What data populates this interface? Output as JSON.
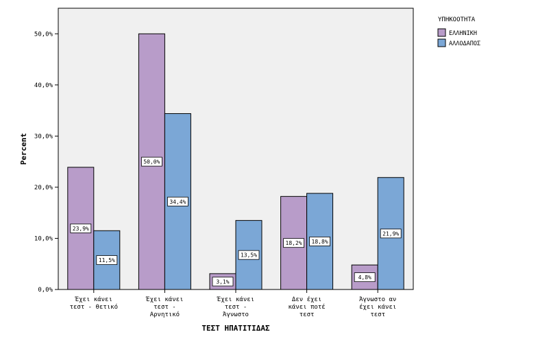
{
  "chart_data": {
    "type": "bar",
    "xlabel": "ΤΕΣΤ ΗΠΑΤΙΤΙΔΑΣ",
    "ylabel": "Percent",
    "ylim": [
      0,
      55
    ],
    "yticks": [
      0,
      10,
      20,
      30,
      40,
      50
    ],
    "ytick_labels": [
      "0,0%",
      "10,0%",
      "20,0%",
      "30,0%",
      "40,0%",
      "50,0%"
    ],
    "grid": false,
    "legend_position": "top-right",
    "legend_title": "ΥΠΗΚΟΟΤΗΤΑ",
    "categories": [
      [
        "Έχει κάνει",
        "τεστ - θετικό"
      ],
      [
        "Έχει κάνει",
        "τεστ -",
        "Αρνητικό"
      ],
      [
        "Έχει κάνει",
        "τεστ -",
        "Άγνωστο"
      ],
      [
        "Δεν έχει",
        "κάνει ποτέ",
        "τεστ"
      ],
      [
        "Άγνωστο αν",
        "έχει κάνει",
        "τεστ"
      ]
    ],
    "series": [
      {
        "name": "ΕΛΛΗΝΙΚΗ",
        "color": "#b89cc9",
        "values": [
          23.9,
          50.0,
          3.1,
          18.2,
          4.8
        ],
        "labels": [
          "23,9%",
          "50,0%",
          "3,1%",
          "18,2%",
          "4,8%"
        ]
      },
      {
        "name": "ΑΛΛΟΔΑΠΟΣ",
        "color": "#7ba7d6",
        "values": [
          11.5,
          34.4,
          13.5,
          18.8,
          21.9
        ],
        "labels": [
          "11,5%",
          "34,4%",
          "13,5%",
          "18,8%",
          "21,9%"
        ]
      }
    ],
    "plot_background": "#f0f0f0"
  }
}
